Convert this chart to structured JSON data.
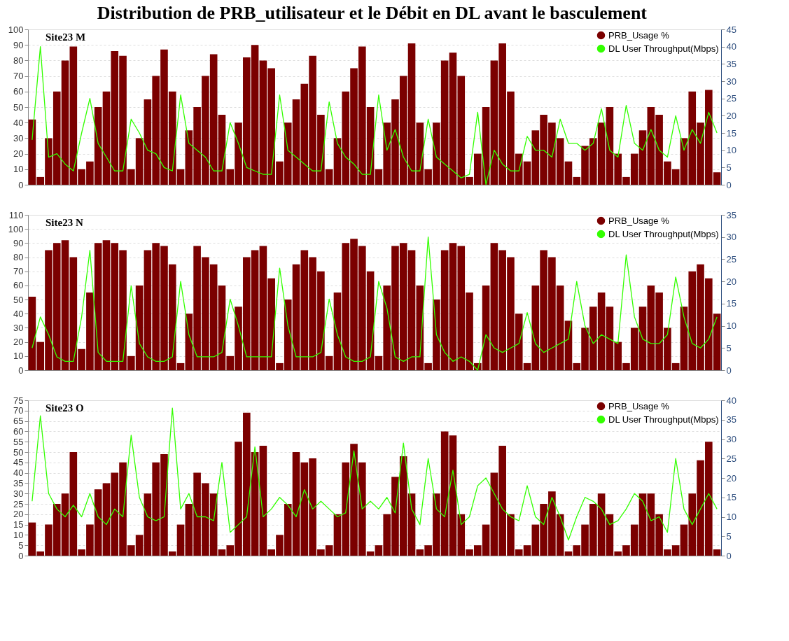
{
  "chart_data": [
    {
      "type": "bar",
      "title": "Distribution  de PRB_utilisateur et le Débit en DL avant le basculement",
      "subtitle": "Site23 M",
      "categories": [
        null,
        null,
        null,
        null,
        null,
        null,
        null,
        null,
        null,
        null,
        null,
        null,
        null,
        null,
        null,
        null,
        null,
        null,
        null,
        null,
        null,
        null,
        null,
        null,
        null,
        null,
        null,
        null,
        null,
        null,
        null,
        null,
        null,
        null,
        null,
        null,
        null,
        null,
        null,
        null,
        null,
        null,
        null,
        null,
        null,
        null,
        null,
        null,
        null,
        null,
        null,
        null,
        null,
        null,
        null,
        null,
        null,
        null,
        null,
        null,
        null,
        null,
        null,
        null,
        null,
        null,
        null,
        null,
        null,
        null,
        null,
        null,
        null,
        null,
        null,
        null,
        null,
        null,
        null,
        null,
        null,
        null,
        null,
        null
      ],
      "ylim": [
        0,
        100
      ],
      "yticks": [
        0,
        10,
        20,
        30,
        40,
        50,
        60,
        70,
        80,
        90,
        100
      ],
      "y2lim": [
        0,
        45
      ],
      "y2ticks": [
        0,
        5,
        10,
        15,
        20,
        25,
        30,
        35,
        40,
        45
      ],
      "grid": "y",
      "legend": "top right",
      "series": [
        {
          "name": "PRB_Usage %",
          "color": "#7b0000",
          "values": [
            42,
            5,
            30,
            60,
            80,
            89,
            10,
            15,
            50,
            60,
            86,
            83,
            10,
            30,
            55,
            70,
            87,
            60,
            10,
            35,
            50,
            70,
            84,
            45,
            10,
            40,
            82,
            90,
            80,
            75,
            15,
            40,
            55,
            65,
            83,
            45,
            10,
            30,
            60,
            75,
            89,
            50,
            10,
            40,
            55,
            70,
            91,
            40,
            10,
            40,
            80,
            85,
            70,
            5,
            20,
            50,
            80,
            91,
            60,
            20,
            15,
            35,
            45,
            40,
            30,
            15,
            5,
            25,
            30,
            40,
            50,
            20,
            5,
            20,
            35,
            50,
            45,
            15,
            10,
            30,
            60,
            40,
            61,
            8
          ]
        },
        {
          "name": "DL User Throughput(Mbps)",
          "type": "line",
          "axis": "y2",
          "color": "#33ff00",
          "values": [
            13,
            40,
            8,
            9,
            6,
            4,
            15,
            25,
            12,
            8,
            4,
            4,
            19,
            15,
            10,
            9,
            5,
            4,
            26,
            12,
            10,
            8,
            4,
            4,
            18,
            12,
            5,
            4,
            3,
            3,
            26,
            10,
            8,
            6,
            4,
            4,
            24,
            12,
            8,
            6,
            3,
            3,
            26,
            10,
            16,
            8,
            4,
            4,
            19,
            8,
            6,
            4,
            2,
            3,
            21,
            0,
            10,
            6,
            4,
            4,
            14,
            10,
            10,
            8,
            19,
            12,
            12,
            10,
            12,
            22,
            10,
            8,
            23,
            12,
            10,
            16,
            10,
            8,
            20,
            10,
            16,
            12,
            21,
            15
          ]
        }
      ]
    },
    {
      "type": "bar",
      "subtitle": "Site23 N",
      "categories": [
        null,
        null,
        null,
        null,
        null,
        null,
        null,
        null,
        null,
        null,
        null,
        null,
        null,
        null,
        null,
        null,
        null,
        null,
        null,
        null,
        null,
        null,
        null,
        null,
        null,
        null,
        null,
        null,
        null,
        null,
        null,
        null,
        null,
        null,
        null,
        null,
        null,
        null,
        null,
        null,
        null,
        null,
        null,
        null,
        null,
        null,
        null,
        null,
        null,
        null,
        null,
        null,
        null,
        null,
        null,
        null,
        null,
        null,
        null,
        null,
        null,
        null,
        null,
        null,
        null,
        null,
        null,
        null,
        null,
        null,
        null,
        null,
        null,
        null,
        null,
        null,
        null,
        null,
        null,
        null,
        null,
        null,
        null,
        null
      ],
      "ylim": [
        0,
        110
      ],
      "yticks": [
        0,
        10,
        20,
        30,
        40,
        50,
        60,
        70,
        80,
        90,
        100,
        110
      ],
      "y2lim": [
        0,
        35
      ],
      "y2ticks": [
        0,
        5,
        10,
        15,
        20,
        25,
        30,
        35
      ],
      "grid": "y",
      "legend": "top right",
      "series": [
        {
          "name": "PRB_Usage %",
          "color": "#7b0000",
          "values": [
            52,
            20,
            85,
            90,
            92,
            80,
            15,
            55,
            90,
            92,
            90,
            85,
            10,
            60,
            85,
            90,
            88,
            75,
            5,
            40,
            88,
            80,
            75,
            60,
            10,
            45,
            80,
            85,
            88,
            65,
            5,
            50,
            75,
            85,
            80,
            70,
            10,
            55,
            90,
            93,
            88,
            70,
            10,
            60,
            88,
            90,
            85,
            60,
            5,
            50,
            85,
            90,
            88,
            55,
            5,
            60,
            90,
            85,
            80,
            40,
            5,
            60,
            85,
            80,
            60,
            35,
            5,
            30,
            45,
            55,
            45,
            20,
            5,
            30,
            45,
            60,
            55,
            30,
            5,
            45,
            70,
            75,
            65,
            40
          ]
        },
        {
          "name": "DL User Throughput(Mbps)",
          "type": "line",
          "axis": "y2",
          "color": "#33ff00",
          "values": [
            5,
            12,
            8,
            3,
            2,
            2,
            12,
            27,
            4,
            2,
            2,
            2,
            19,
            6,
            3,
            2,
            2,
            3,
            20,
            8,
            3,
            3,
            3,
            4,
            16,
            10,
            3,
            3,
            3,
            3,
            23,
            10,
            3,
            3,
            3,
            4,
            16,
            8,
            3,
            2,
            2,
            3,
            20,
            14,
            3,
            2,
            3,
            3,
            30,
            8,
            4,
            2,
            3,
            2,
            0,
            8,
            5,
            4,
            5,
            6,
            13,
            6,
            4,
            5,
            6,
            7,
            20,
            10,
            6,
            8,
            7,
            6,
            26,
            12,
            7,
            6,
            6,
            8,
            21,
            12,
            6,
            5,
            7,
            12
          ]
        }
      ]
    },
    {
      "type": "bar",
      "subtitle": "Site23 O",
      "categories": [
        null,
        null,
        null,
        null,
        null,
        null,
        null,
        null,
        null,
        null,
        null,
        null,
        null,
        null,
        null,
        null,
        null,
        null,
        null,
        null,
        null,
        null,
        null,
        null,
        null,
        null,
        null,
        null,
        null,
        null,
        null,
        null,
        null,
        null,
        null,
        null,
        null,
        null,
        null,
        null,
        null,
        null,
        null,
        null,
        null,
        null,
        null,
        null,
        null,
        null,
        null,
        null,
        null,
        null,
        null,
        null,
        null,
        null,
        null,
        null,
        null,
        null,
        null,
        null,
        null,
        null,
        null,
        null,
        null,
        null,
        null,
        null,
        null,
        null,
        null,
        null,
        null,
        null,
        null,
        null,
        null,
        null,
        null,
        null
      ],
      "ylim": [
        0,
        75
      ],
      "yticks": [
        0,
        5,
        10,
        15,
        20,
        25,
        30,
        35,
        40,
        45,
        50,
        55,
        60,
        65,
        70,
        75
      ],
      "y2lim": [
        0,
        40
      ],
      "y2ticks": [
        0,
        5,
        10,
        15,
        20,
        25,
        30,
        35,
        40
      ],
      "grid": "y",
      "legend": "top right",
      "series": [
        {
          "name": "PRB_Usage %",
          "color": "#7b0000",
          "values": [
            16,
            2,
            15,
            25,
            30,
            50,
            3,
            15,
            32,
            35,
            40,
            45,
            5,
            10,
            30,
            45,
            49,
            2,
            15,
            25,
            40,
            35,
            30,
            3,
            5,
            55,
            69,
            50,
            53,
            3,
            10,
            25,
            50,
            45,
            47,
            3,
            5,
            20,
            45,
            54,
            45,
            2,
            5,
            20,
            38,
            48,
            30,
            3,
            5,
            30,
            60,
            58,
            20,
            3,
            5,
            15,
            40,
            53,
            20,
            3,
            5,
            15,
            25,
            31,
            20,
            2,
            5,
            15,
            25,
            30,
            20,
            2,
            5,
            15,
            30,
            30,
            20,
            3,
            5,
            15,
            30,
            46,
            55,
            3
          ]
        },
        {
          "name": "DL User Throughput(Mbps)",
          "type": "line",
          "axis": "y2",
          "color": "#33ff00",
          "values": [
            14,
            36,
            16,
            12,
            10,
            13,
            10,
            16,
            10,
            8,
            12,
            10,
            31,
            15,
            10,
            9,
            10,
            38,
            12,
            16,
            10,
            10,
            9,
            24,
            6,
            8,
            10,
            28,
            10,
            12,
            15,
            13,
            10,
            17,
            12,
            14,
            12,
            10,
            11,
            27,
            12,
            14,
            12,
            15,
            11,
            29,
            12,
            8,
            25,
            12,
            10,
            22,
            8,
            10,
            18,
            20,
            16,
            12,
            10,
            9,
            18,
            10,
            8,
            15,
            10,
            4,
            10,
            15,
            14,
            12,
            8,
            9,
            12,
            16,
            14,
            9,
            10,
            6,
            25,
            12,
            8,
            12,
            16,
            12
          ]
        }
      ]
    }
  ]
}
